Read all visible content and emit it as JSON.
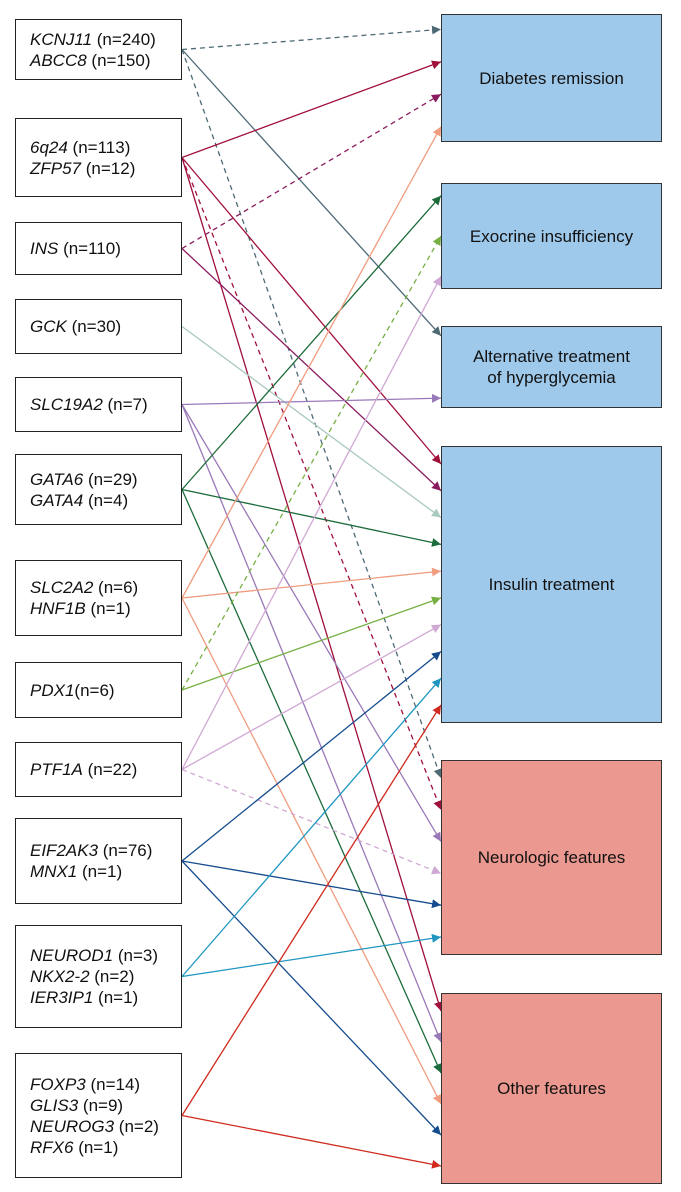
{
  "colors": {
    "treatment_box": "#9fc9eb",
    "feature_box": "#ea9890",
    "kcnj11": "#4d6a75",
    "zfp57": "#a0103a",
    "ins": "#8a1a5e",
    "gck": "#a9c9bc",
    "slc19a2": "#9a79b8",
    "gata6": "#1c6b3b",
    "slc2a2": "#ef9c7f",
    "pdx1": "#76b043",
    "ptf1a": "#d0a8d4",
    "eif2ak3": "#164c8e",
    "neurod1": "#1e96c0",
    "foxp3": "#cf2a1d"
  },
  "gene_groups": [
    {
      "id": "kcnj11",
      "lines": [
        {
          "gene": "KCNJ11",
          "count": " (n=240)"
        },
        {
          "gene": "ABCC8",
          "count": " (n=150)"
        }
      ]
    },
    {
      "id": "zfp57",
      "lines": [
        {
          "gene": "6q24",
          "count": " (n=113)"
        },
        {
          "gene": "ZFP57",
          "count": " (n=12)"
        }
      ]
    },
    {
      "id": "ins",
      "lines": [
        {
          "gene": "INS",
          "count": " (n=110)"
        }
      ]
    },
    {
      "id": "gck",
      "lines": [
        {
          "gene": "GCK",
          "count": " (n=30)"
        }
      ]
    },
    {
      "id": "slc19a2",
      "lines": [
        {
          "gene": "SLC19A2",
          "count": " (n=7)"
        }
      ]
    },
    {
      "id": "gata6",
      "lines": [
        {
          "gene": "GATA6",
          "count": " (n=29)"
        },
        {
          "gene": "GATA4",
          "count": " (n=4)"
        }
      ]
    },
    {
      "id": "slc2a2",
      "lines": [
        {
          "gene": "SLC2A2",
          "count": " (n=6)"
        },
        {
          "gene": "HNF1B",
          "count": " (n=1)"
        }
      ]
    },
    {
      "id": "pdx1",
      "lines": [
        {
          "gene": "PDX1",
          "count": "(n=6)"
        }
      ]
    },
    {
      "id": "ptf1a",
      "lines": [
        {
          "gene": "PTF1A",
          "count": " (n=22)"
        }
      ]
    },
    {
      "id": "eif2ak3",
      "lines": [
        {
          "gene": "EIF2AK3",
          "count": " (n=76)"
        },
        {
          "gene": "MNX1",
          "count": " (n=1)"
        }
      ]
    },
    {
      "id": "neurod1",
      "lines": [
        {
          "gene": "NEUROD1",
          "count": " (n=3)"
        },
        {
          "gene": "NKX2-2",
          "count": " (n=2)"
        },
        {
          "gene": "IER3IP1",
          "count": " (n=1)"
        }
      ]
    },
    {
      "id": "foxp3",
      "lines": [
        {
          "gene": "FOXP3",
          "count": " (n=14)"
        },
        {
          "gene": "GLIS3",
          "count": " (n=9)"
        },
        {
          "gene": "NEUROG3",
          "count": " (n=2)"
        },
        {
          "gene": "RFX6",
          "count": " (n=1)"
        }
      ]
    }
  ],
  "outcomes": [
    {
      "id": "remission",
      "kind": "treatment",
      "lines": [
        "Diabetes remission"
      ]
    },
    {
      "id": "exocrine",
      "kind": "treatment",
      "lines": [
        "Exocrine insufficiency"
      ]
    },
    {
      "id": "alternative",
      "kind": "treatment",
      "lines": [
        "Alternative treatment",
        "of hyperglycemia"
      ]
    },
    {
      "id": "insulin",
      "kind": "treatment",
      "lines": [
        "Insulin treatment"
      ]
    },
    {
      "id": "neurologic",
      "kind": "feature",
      "lines": [
        "Neurologic features"
      ]
    },
    {
      "id": "other",
      "kind": "feature",
      "lines": [
        "Other features"
      ]
    }
  ],
  "connections": [
    {
      "from": "kcnj11",
      "to": "remission",
      "style": "dashed"
    },
    {
      "from": "kcnj11",
      "to": "alternative",
      "style": "solid"
    },
    {
      "from": "kcnj11",
      "to": "neurologic",
      "style": "dashed"
    },
    {
      "from": "zfp57",
      "to": "remission",
      "style": "solid"
    },
    {
      "from": "zfp57",
      "to": "insulin",
      "style": "solid"
    },
    {
      "from": "zfp57",
      "to": "neurologic",
      "style": "dashed"
    },
    {
      "from": "zfp57",
      "to": "other",
      "style": "solid"
    },
    {
      "from": "ins",
      "to": "remission",
      "style": "dashed"
    },
    {
      "from": "ins",
      "to": "insulin",
      "style": "solid"
    },
    {
      "from": "gck",
      "to": "insulin",
      "style": "solid"
    },
    {
      "from": "slc19a2",
      "to": "alternative",
      "style": "solid"
    },
    {
      "from": "slc19a2",
      "to": "neurologic",
      "style": "solid"
    },
    {
      "from": "slc19a2",
      "to": "other",
      "style": "solid"
    },
    {
      "from": "gata6",
      "to": "exocrine",
      "style": "solid"
    },
    {
      "from": "gata6",
      "to": "insulin",
      "style": "solid"
    },
    {
      "from": "gata6",
      "to": "other",
      "style": "solid"
    },
    {
      "from": "slc2a2",
      "to": "remission",
      "style": "solid"
    },
    {
      "from": "slc2a2",
      "to": "insulin",
      "style": "solid"
    },
    {
      "from": "slc2a2",
      "to": "other",
      "style": "solid"
    },
    {
      "from": "pdx1",
      "to": "exocrine",
      "style": "dashed"
    },
    {
      "from": "pdx1",
      "to": "insulin",
      "style": "solid"
    },
    {
      "from": "ptf1a",
      "to": "exocrine",
      "style": "solid"
    },
    {
      "from": "ptf1a",
      "to": "insulin",
      "style": "solid"
    },
    {
      "from": "ptf1a",
      "to": "neurologic",
      "style": "dashed"
    },
    {
      "from": "eif2ak3",
      "to": "insulin",
      "style": "solid"
    },
    {
      "from": "eif2ak3",
      "to": "neurologic",
      "style": "solid"
    },
    {
      "from": "eif2ak3",
      "to": "other",
      "style": "solid"
    },
    {
      "from": "neurod1",
      "to": "insulin",
      "style": "solid"
    },
    {
      "from": "neurod1",
      "to": "neurologic",
      "style": "solid"
    },
    {
      "from": "foxp3",
      "to": "insulin",
      "style": "solid"
    },
    {
      "from": "foxp3",
      "to": "other",
      "style": "solid"
    }
  ]
}
